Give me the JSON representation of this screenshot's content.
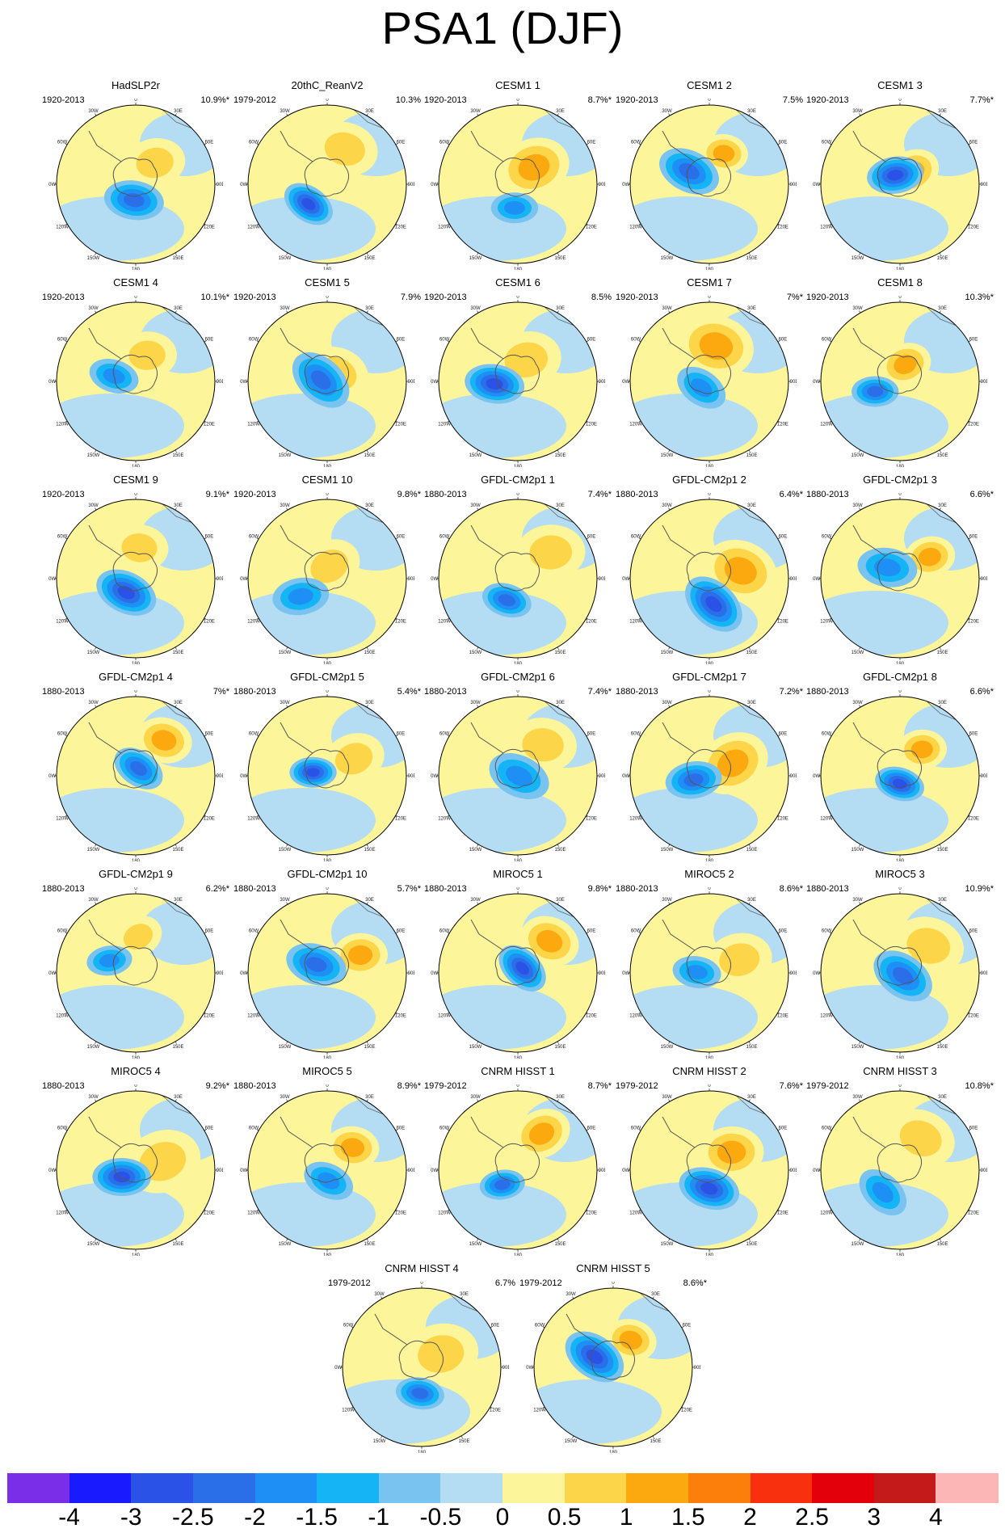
{
  "title": "PSA1 (DJF)",
  "panels": [
    {
      "title": "HadSLP2r",
      "years": "1920-2013",
      "variance": "10.9%*"
    },
    {
      "title": "20thC_ReanV2",
      "years": "1979-2012",
      "variance": "10.3%"
    },
    {
      "title": "CESM1 1",
      "years": "1920-2013",
      "variance": "8.7%*"
    },
    {
      "title": "CESM1 2",
      "years": "1920-2013",
      "variance": "7.5%"
    },
    {
      "title": "CESM1 3",
      "years": "1920-2013",
      "variance": "7.7%*"
    },
    {
      "title": "CESM1 4",
      "years": "1920-2013",
      "variance": "10.1%*"
    },
    {
      "title": "CESM1 5",
      "years": "1920-2013",
      "variance": "7.9%"
    },
    {
      "title": "CESM1 6",
      "years": "1920-2013",
      "variance": "8.5%"
    },
    {
      "title": "CESM1 7",
      "years": "1920-2013",
      "variance": "7%*"
    },
    {
      "title": "CESM1 8",
      "years": "1920-2013",
      "variance": "10.3%*"
    },
    {
      "title": "CESM1 9",
      "years": "1920-2013",
      "variance": "9.1%*"
    },
    {
      "title": "CESM1 10",
      "years": "1920-2013",
      "variance": "9.8%*"
    },
    {
      "title": "GFDL-CM2p1 1",
      "years": "1880-2013",
      "variance": "7.4%*"
    },
    {
      "title": "GFDL-CM2p1 2",
      "years": "1880-2013",
      "variance": "6.4%*"
    },
    {
      "title": "GFDL-CM2p1 3",
      "years": "1880-2013",
      "variance": "6.6%*"
    },
    {
      "title": "GFDL-CM2p1 4",
      "years": "1880-2013",
      "variance": "7%*"
    },
    {
      "title": "GFDL-CM2p1 5",
      "years": "1880-2013",
      "variance": "5.4%*"
    },
    {
      "title": "GFDL-CM2p1 6",
      "years": "1880-2013",
      "variance": "7.4%*"
    },
    {
      "title": "GFDL-CM2p1 7",
      "years": "1880-2013",
      "variance": "7.2%*"
    },
    {
      "title": "GFDL-CM2p1 8",
      "years": "1880-2013",
      "variance": "6.6%*"
    },
    {
      "title": "GFDL-CM2p1 9",
      "years": "1880-2013",
      "variance": "6.2%*"
    },
    {
      "title": "GFDL-CM2p1 10",
      "years": "1880-2013",
      "variance": "5.7%*"
    },
    {
      "title": "MIROC5 1",
      "years": "1880-2013",
      "variance": "9.8%*"
    },
    {
      "title": "MIROC5 2",
      "years": "1880-2013",
      "variance": "8.6%*"
    },
    {
      "title": "MIROC5 3",
      "years": "1880-2013",
      "variance": "10.9%*"
    },
    {
      "title": "MIROC5 4",
      "years": "1880-2013",
      "variance": "9.2%*"
    },
    {
      "title": "MIROC5 5",
      "years": "1880-2013",
      "variance": "8.9%*"
    },
    {
      "title": "CNRM HISST 1",
      "years": "1979-2012",
      "variance": "8.7%*"
    },
    {
      "title": "CNRM HISST 2",
      "years": "1979-2012",
      "variance": "7.6%*"
    },
    {
      "title": "CNRM HISST 3",
      "years": "1979-2012",
      "variance": "10.8%*"
    },
    {
      "title": "CNRM HISST 4",
      "years": "1979-2012",
      "variance": "6.7%"
    },
    {
      "title": "CNRM HISST 5",
      "years": "1979-2012",
      "variance": "8.6%*"
    }
  ],
  "longitude_labels": [
    "0",
    "30E",
    "60E",
    "90E",
    "120E",
    "150E",
    "180",
    "150W",
    "120W",
    "90W",
    "60W",
    "30W"
  ],
  "colorbar": {
    "colors": [
      "#7b2ee8",
      "#1a1aff",
      "#2a52e6",
      "#2b6fe8",
      "#1e8ff5",
      "#14b4f5",
      "#78c3ef",
      "#b4dcf3",
      "#fdf59a",
      "#fdd549",
      "#fca90f",
      "#fb7f0a",
      "#f9300e",
      "#e3000b",
      "#c41a1a",
      "#fdb6b6"
    ],
    "labels": [
      "-4",
      "-3",
      "-2.5",
      "-2",
      "-1.5",
      "-1",
      "-0.5",
      "0",
      "0.5",
      "1",
      "1.5",
      "2",
      "2.5",
      "3",
      "4"
    ]
  }
}
